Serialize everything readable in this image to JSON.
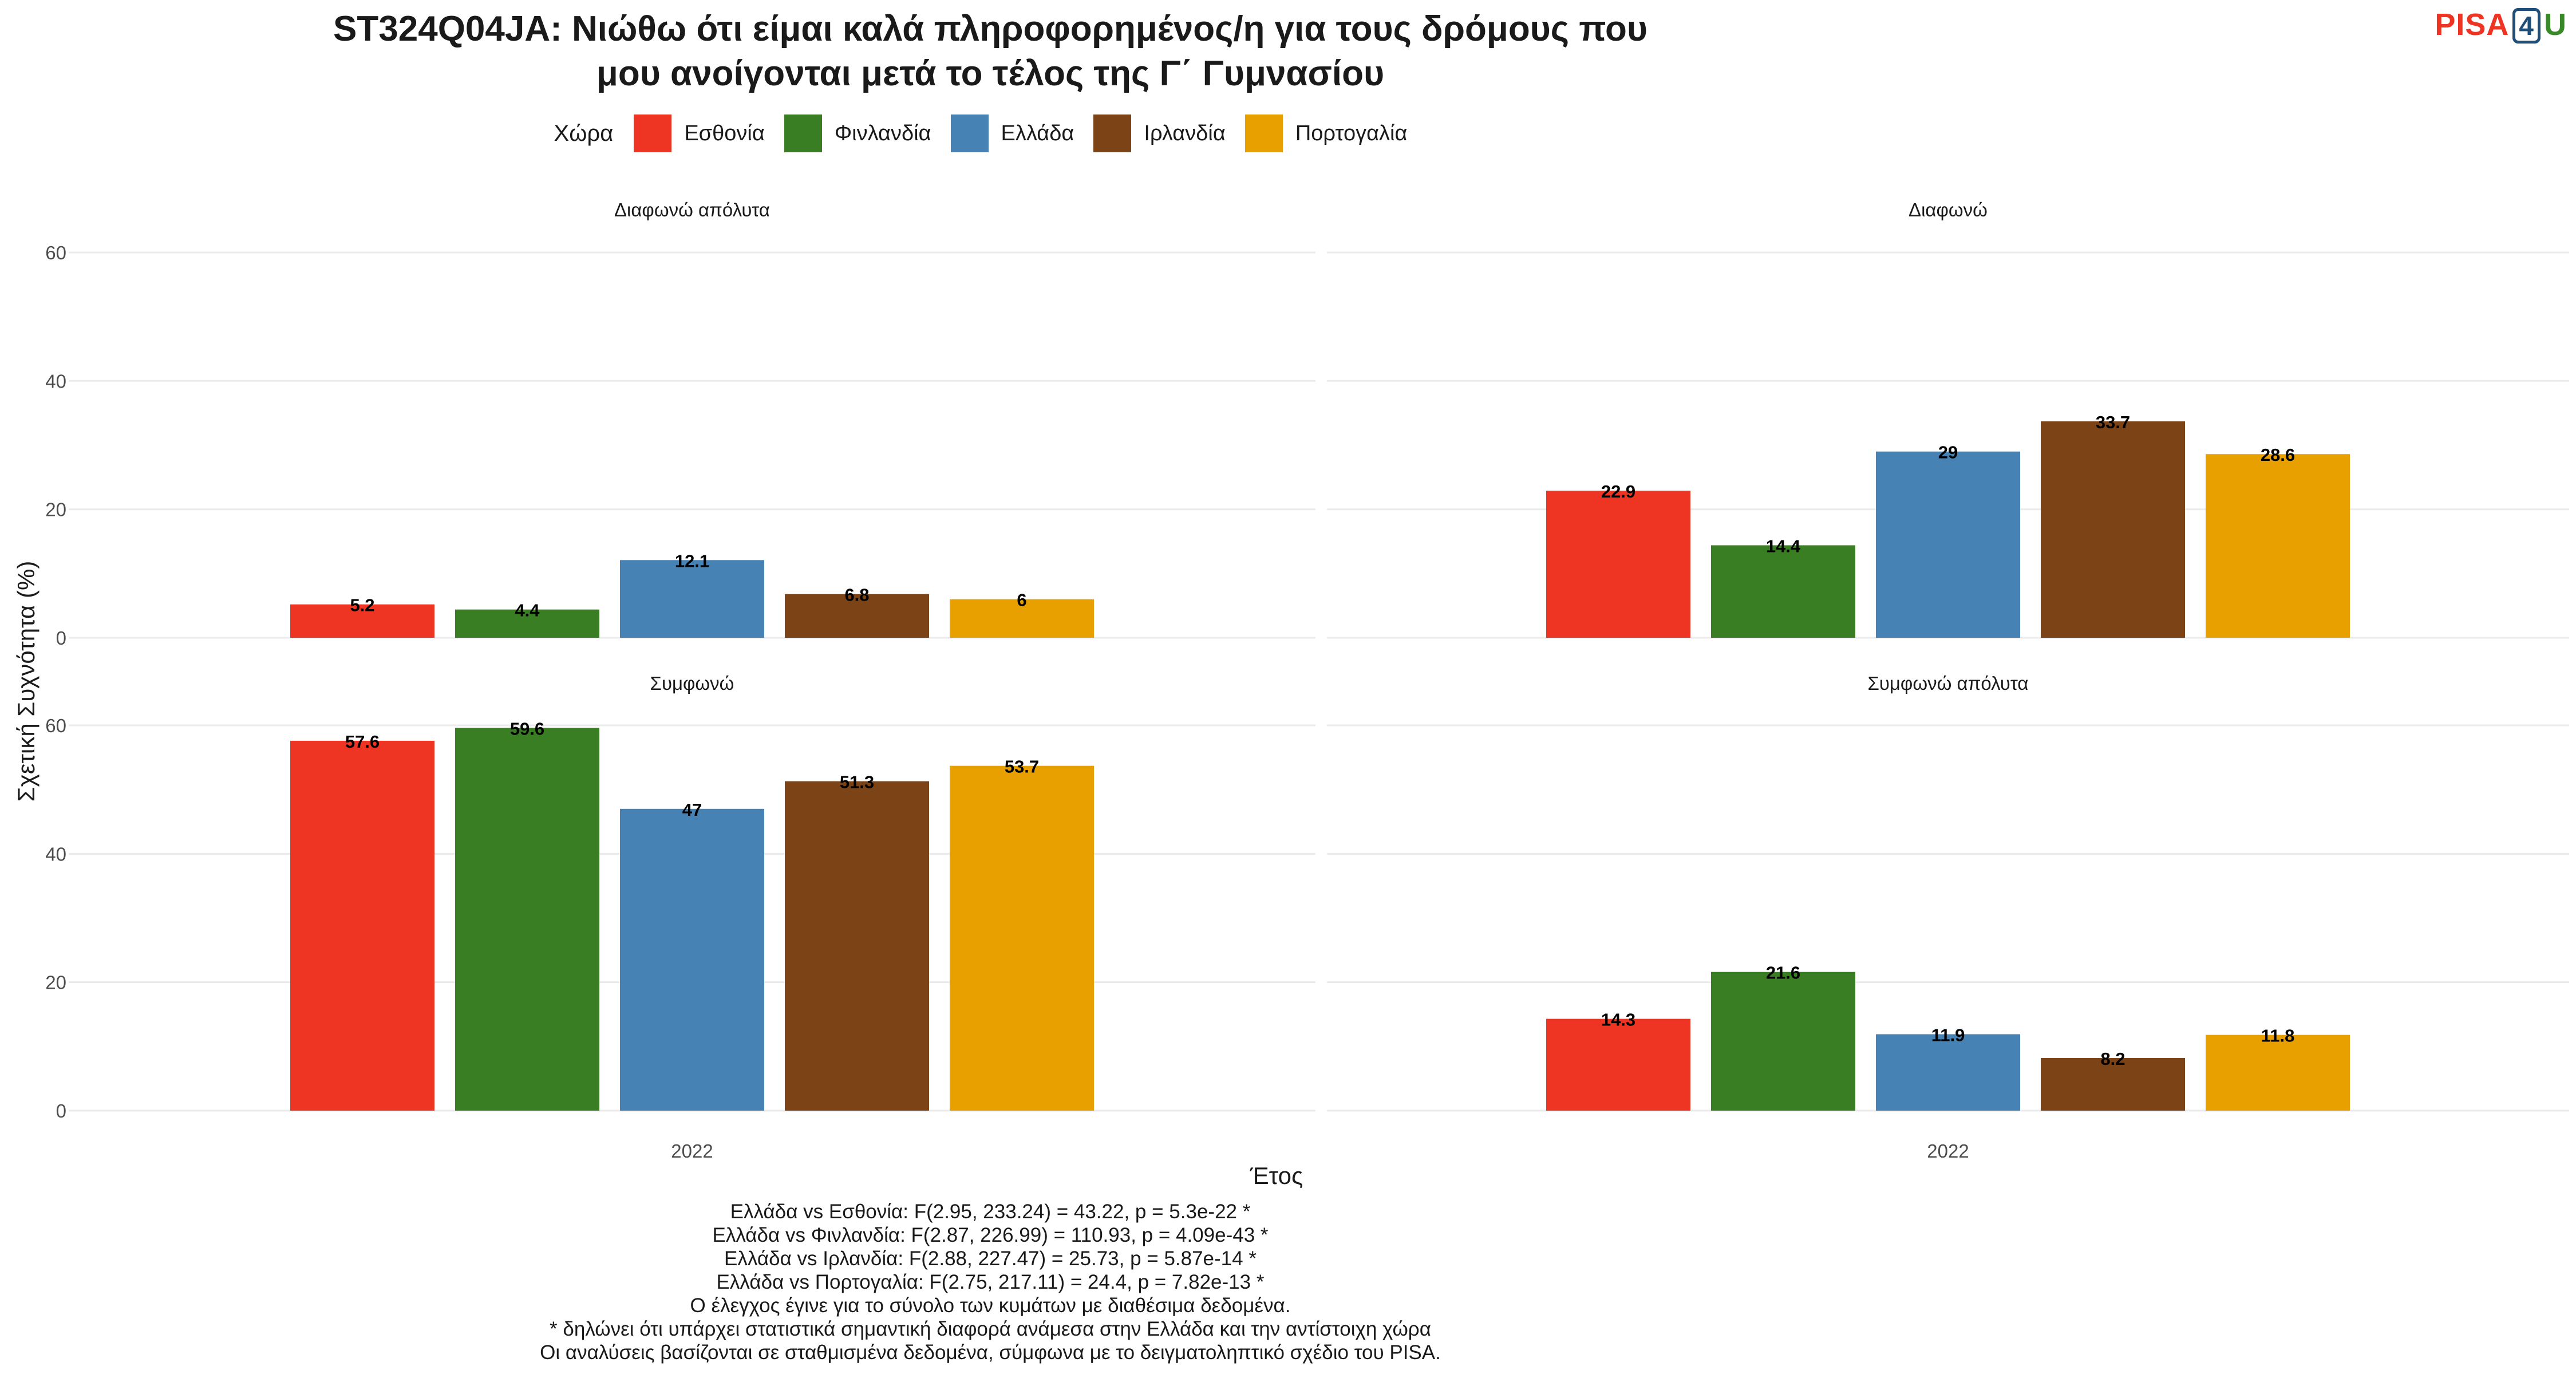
{
  "chart_data": {
    "type": "bar",
    "title_lines": [
      "ST324Q04JA: Νιώθω ότι είμαι καλά πληροφορημένος/η για τους δρόμους που",
      "μου ανοίγονται μετά το τέλος της Γ΄ Γυμνασίου"
    ],
    "xlabel": "Έτος",
    "ylabel": "Σχετική Συχνότητα (%)",
    "ylim": [
      0,
      60
    ],
    "yticks": [
      0,
      20,
      40,
      60
    ],
    "grid": true,
    "legend": {
      "title": "Χώρα",
      "position": "top",
      "entries": [
        {
          "name": "Εσθονία",
          "color": "#ee3524"
        },
        {
          "name": "Φινλανδία",
          "color": "#3a7e23"
        },
        {
          "name": "Ελλάδα",
          "color": "#4682b4"
        },
        {
          "name": "Ιρλανδία",
          "color": "#7b4316"
        },
        {
          "name": "Πορτογαλία",
          "color": "#e8a000"
        }
      ]
    },
    "panels": [
      {
        "facet": "Διαφωνώ απόλυτα",
        "x_category": "2022",
        "values": [
          5.2,
          4.4,
          12.1,
          6.8,
          6
        ],
        "labels": [
          "5.2",
          "4.4",
          "12.1",
          "6.8",
          "6"
        ]
      },
      {
        "facet": "Διαφωνώ",
        "x_category": "2022",
        "values": [
          22.9,
          14.4,
          29,
          33.7,
          28.6
        ],
        "labels": [
          "22.9",
          "14.4",
          "29",
          "33.7",
          "28.6"
        ]
      },
      {
        "facet": "Συμφωνώ",
        "x_category": "2022",
        "values": [
          57.6,
          59.6,
          47,
          51.3,
          53.7
        ],
        "labels": [
          "57.6",
          "59.6",
          "47",
          "51.3",
          "53.7"
        ]
      },
      {
        "facet": "Συμφωνώ απόλυτα",
        "x_category": "2022",
        "values": [
          14.3,
          21.6,
          11.9,
          8.2,
          11.8
        ],
        "labels": [
          "14.3",
          "21.6",
          "11.9",
          "8.2",
          "11.8"
        ]
      }
    ]
  },
  "logo": {
    "text_a": "PISA",
    "text_b": "4",
    "text_c": "U"
  },
  "notes": [
    "Ελλάδα vs Εσθονία: F(2.95, 233.24) = 43.22, p = 5.3e-22 *",
    "Ελλάδα vs Φινλανδία: F(2.87, 226.99) = 110.93, p = 4.09e-43 *",
    "Ελλάδα vs Ιρλανδία: F(2.88, 227.47) = 25.73, p = 5.87e-14 *",
    "Ελλάδα vs Πορτογαλία: F(2.75, 217.11) = 24.4, p = 7.82e-13 *",
    "Ο έλεγχος έγινε για το σύνολο των κυμάτων με διαθέσιμα δεδομένα.",
    "* δηλώνει ότι υπάρχει στατιστικά σημαντική διαφορά ανάμεσα στην Ελλάδα και την αντίστοιχη χώρα",
    "Οι αναλύσεις βασίζονται σε σταθμισμένα δεδομένα, σύμφωνα με το δειγματοληπτικό σχέδιο του PISA."
  ]
}
